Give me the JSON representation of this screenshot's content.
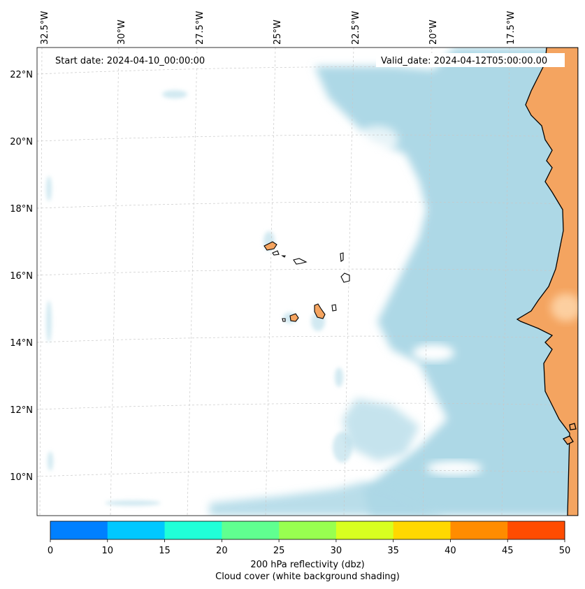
{
  "header": {
    "start_label": "Start date: 2024-04-10_00:00:00",
    "valid_label": "Valid_date: 2024-04-12T05:00:00.00"
  },
  "axes": {
    "lon_ticks": [
      "32.5°W",
      "30°W",
      "27.5°W",
      "25°W",
      "22.5°W",
      "20°W",
      "17.5°W"
    ],
    "lat_ticks": [
      "22°N",
      "20°N",
      "18°N",
      "16°N",
      "14°N",
      "12°N",
      "10°N"
    ]
  },
  "colorbar": {
    "title": "200 hPa reflectivity (dbz)",
    "subtitle": "Cloud cover (white background shading)",
    "ticks": [
      "0",
      "10",
      "15",
      "20",
      "25",
      "30",
      "35",
      "40",
      "45",
      "50"
    ],
    "colors": [
      "#0080ff",
      "#00c8ff",
      "#20ffd8",
      "#60ff90",
      "#98ff50",
      "#d8ff20",
      "#ffd800",
      "#ff8c00",
      "#ff4c00"
    ]
  },
  "colors": {
    "ocean_shading": "#add8e6",
    "land": "#f4a460",
    "cloud": "#ffffff"
  }
}
